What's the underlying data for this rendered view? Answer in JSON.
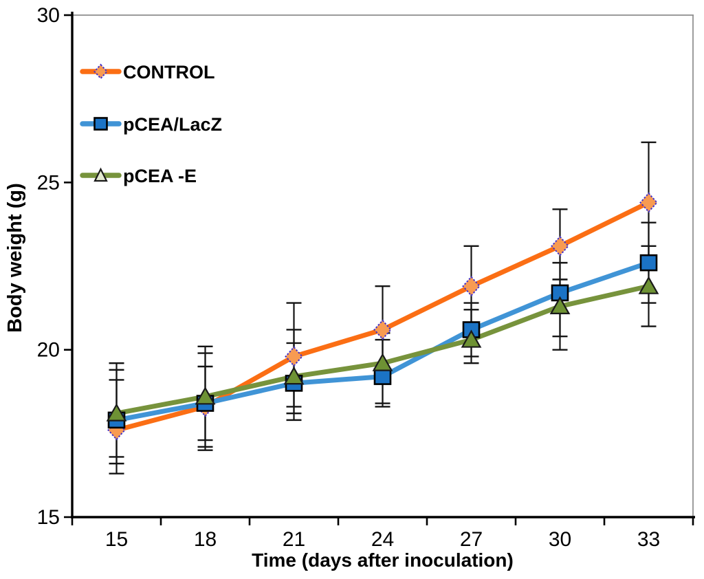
{
  "figure": {
    "background": "#ffffff",
    "frame_color": "#8c8c8c",
    "axis_color": "#000000",
    "error_bar_color": "#141414"
  },
  "chart_data": {
    "type": "line",
    "title": "",
    "xlabel": "Time (days after inoculation)",
    "ylabel": "Body weight (g)",
    "x_values": [
      15,
      18,
      21,
      24,
      27,
      30,
      33
    ],
    "x_tick_labels": [
      "15",
      "18",
      "21",
      "24",
      "27",
      "30",
      "33"
    ],
    "ylim": [
      15,
      30
    ],
    "y_ticks": [
      30,
      25,
      20,
      15
    ],
    "grid": false,
    "legend_position": "top-left-inside",
    "error_bars": true,
    "series": [
      {
        "name": "CONTROL",
        "marker": "diamond",
        "line_color": "#fb6e14",
        "marker_fill": "#f89b52",
        "marker_stroke": "#4433cc",
        "marker_stroke_style": "dotted",
        "values": [
          17.6,
          18.3,
          19.8,
          20.6,
          21.9,
          23.1,
          24.4
        ],
        "err_low": [
          16.3,
          17.0,
          18.3,
          19.3,
          20.7,
          22.1,
          22.6
        ],
        "err_high": [
          19.1,
          19.5,
          21.4,
          21.9,
          23.1,
          24.2,
          26.2
        ]
      },
      {
        "name": "pCEA/LacZ",
        "marker": "square",
        "line_color": "#4094d6",
        "marker_fill": "#1b73c5",
        "marker_stroke": "#000000",
        "marker_stroke_style": "solid",
        "values": [
          17.9,
          18.4,
          19.0,
          19.2,
          20.6,
          21.7,
          22.6
        ],
        "err_low": [
          16.6,
          17.1,
          17.9,
          18.3,
          19.8,
          20.4,
          21.4
        ],
        "err_high": [
          19.4,
          19.9,
          20.2,
          20.3,
          21.4,
          22.6,
          23.8
        ]
      },
      {
        "name": "pCEA -E",
        "marker": "triangle",
        "line_color": "#77933c",
        "marker_fill": "#6e9234",
        "marker_stroke": "#1a1a1a",
        "marker_stroke_style": "solid",
        "legend_marker_fill": "#e3ead0",
        "values": [
          18.1,
          18.6,
          19.2,
          19.6,
          20.3,
          21.3,
          21.9
        ],
        "err_low": [
          16.8,
          17.3,
          18.1,
          18.4,
          19.6,
          20.0,
          20.7
        ],
        "err_high": [
          19.6,
          20.1,
          20.6,
          20.5,
          21.2,
          22.1,
          23.1
        ]
      }
    ]
  }
}
